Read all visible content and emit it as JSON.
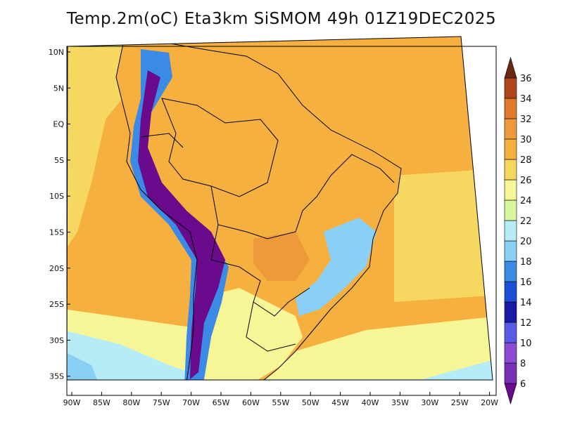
{
  "title": "Temp.2m(oC) Eta3km SiSMOM 49h 01Z19DEC2025",
  "lat_labels": [
    "10N",
    "5N",
    "EQ",
    "5S",
    "10S",
    "15S",
    "20S",
    "25S",
    "30S",
    "35S"
  ],
  "lon_labels": [
    "90W",
    "85W",
    "80W",
    "75W",
    "70W",
    "65W",
    "60W",
    "55W",
    "50W",
    "45W",
    "40W",
    "35W",
    "30W",
    "25W",
    "20W"
  ],
  "colorbar": {
    "levels": [
      "6",
      "8",
      "10",
      "12",
      "14",
      "16",
      "18",
      "20",
      "22",
      "24",
      "26",
      "28",
      "30",
      "32",
      "34",
      "36"
    ],
    "colors": [
      "#6a0a8c",
      "#7a2fb8",
      "#8a4ad6",
      "#5a5ae6",
      "#1a1aa6",
      "#1a4fd6",
      "#3a8ae6",
      "#8ad0f6",
      "#b6ecf8",
      "#d8f6a0",
      "#f6f696",
      "#f6d860",
      "#f6b040",
      "#ee9a3a",
      "#e07a2a",
      "#b0441a",
      "#6a2a12"
    ]
  },
  "map_colors": {
    "ocean_warm": "#f6b040",
    "ocean_mid": "#f6d860",
    "ocean_cool": "#f6f696",
    "ocean_cold": "#b6ecf8",
    "ocean_south": "#8ad0f6",
    "land_main": "#f6b040",
    "land_hot": "#ee9a3a",
    "andes_high": "#6a0a8c",
    "andes_mid": "#3a8ae6",
    "highland": "#8ad0f6",
    "south_land": "#f6f696",
    "border": "#000000"
  }
}
